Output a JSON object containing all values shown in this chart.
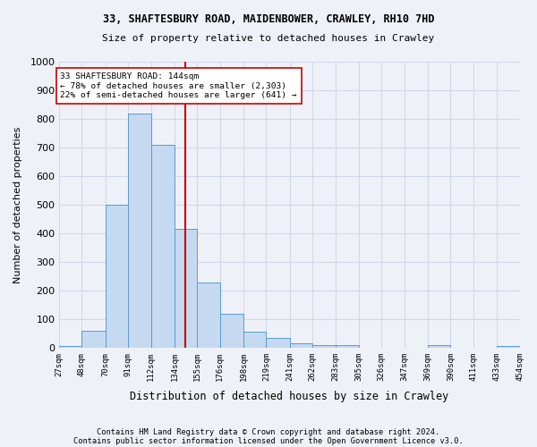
{
  "title1": "33, SHAFTESBURY ROAD, MAIDENBOWER, CRAWLEY, RH10 7HD",
  "title2": "Size of property relative to detached houses in Crawley",
  "xlabel": "Distribution of detached houses by size in Crawley",
  "ylabel": "Number of detached properties",
  "footer1": "Contains HM Land Registry data © Crown copyright and database right 2024.",
  "footer2": "Contains public sector information licensed under the Open Government Licence v3.0.",
  "annotation_line1": "33 SHAFTESBURY ROAD: 144sqm",
  "annotation_line2": "← 78% of detached houses are smaller (2,303)",
  "annotation_line3": "22% of semi-detached houses are larger (641) →",
  "property_size": 144,
  "bar_edges": [
    27,
    48,
    70,
    91,
    112,
    134,
    155,
    176,
    198,
    219,
    241,
    262,
    283,
    305,
    326,
    347,
    369,
    390,
    411,
    433,
    454
  ],
  "bar_heights": [
    7,
    60,
    500,
    820,
    710,
    415,
    228,
    117,
    55,
    35,
    15,
    10,
    10,
    0,
    0,
    0,
    10,
    0,
    0,
    5
  ],
  "bar_color": "#c5d9f0",
  "bar_edge_color": "#5b9bd5",
  "vline_color": "#cc0000",
  "vline_x": 144,
  "annotation_box_color": "#ffffff",
  "annotation_box_edge": "#cc0000",
  "grid_color": "#d0d8e8",
  "ylim": [
    0,
    1000
  ],
  "yticks": [
    0,
    100,
    200,
    300,
    400,
    500,
    600,
    700,
    800,
    900,
    1000
  ],
  "bg_color": "#eef2f8"
}
